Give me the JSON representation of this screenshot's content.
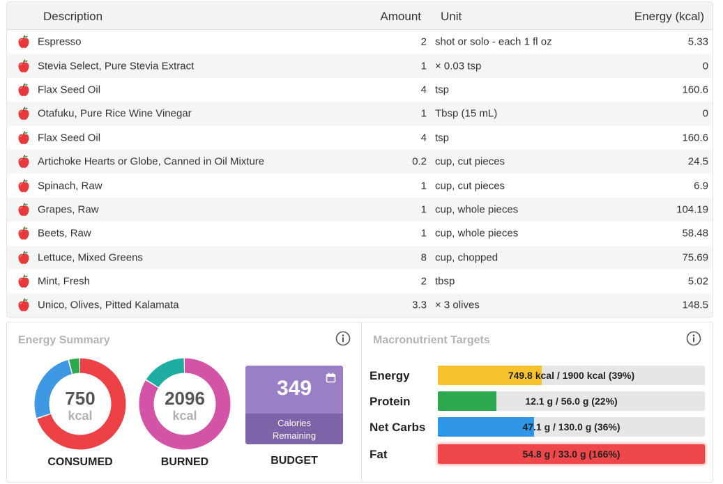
{
  "table": {
    "headers": {
      "description": "Description",
      "amount": "Amount",
      "unit": "Unit",
      "energy": "Energy (kcal)"
    },
    "rows": [
      {
        "description": "Espresso",
        "amount": "2",
        "unit": "shot or solo - each 1 fl oz",
        "energy": "5.33"
      },
      {
        "description": "Stevia Select, Pure Stevia Extract",
        "amount": "1",
        "unit": "× 0.03 tsp",
        "energy": "0"
      },
      {
        "description": "Flax Seed Oil",
        "amount": "4",
        "unit": "tsp",
        "energy": "160.6"
      },
      {
        "description": "Otafuku, Pure Rice Wine Vinegar",
        "amount": "1",
        "unit": "Tbsp (15 mL)",
        "energy": "0"
      },
      {
        "description": "Flax Seed Oil",
        "amount": "4",
        "unit": "tsp",
        "energy": "160.6"
      },
      {
        "description": "Artichoke Hearts or Globe, Canned in Oil Mixture",
        "amount": "0.2",
        "unit": "cup, cut pieces",
        "energy": "24.5"
      },
      {
        "description": "Spinach, Raw",
        "amount": "1",
        "unit": "cup, cut pieces",
        "energy": "6.9"
      },
      {
        "description": "Grapes, Raw",
        "amount": "1",
        "unit": "cup, whole pieces",
        "energy": "104.19"
      },
      {
        "description": "Beets, Raw",
        "amount": "1",
        "unit": "cup, whole pieces",
        "energy": "58.48"
      },
      {
        "description": "Lettuce, Mixed Greens",
        "amount": "8",
        "unit": "cup, chopped",
        "energy": "75.69"
      },
      {
        "description": "Mint, Fresh",
        "amount": "2",
        "unit": "tbsp",
        "energy": "5.02"
      },
      {
        "description": "Unico, Olives, Pitted Kalamata",
        "amount": "3.3",
        "unit": "× 3 olives",
        "energy": "148.5"
      }
    ],
    "row_icon": "apple-icon"
  },
  "energy_summary": {
    "title": "Energy Summary",
    "info_icon": "info-icon",
    "consumed": {
      "value": "750",
      "unit": "kcal",
      "label": "CONSUMED",
      "segments": [
        {
          "fraction": 0.7,
          "color": "#ec4245"
        },
        {
          "fraction": 0.26,
          "color": "#3d97e3"
        },
        {
          "fraction": 0.04,
          "color": "#2ea84f"
        }
      ]
    },
    "burned": {
      "value": "2096",
      "unit": "kcal",
      "label": "BURNED",
      "segments": [
        {
          "fraction": 0.84,
          "color": "#d354a6"
        },
        {
          "fraction": 0.16,
          "color": "#1fada2"
        }
      ]
    },
    "budget": {
      "value": "349",
      "line1": "Calories",
      "line2": "Remaining",
      "label": "BUDGET",
      "icon": "calendar-icon"
    }
  },
  "macro_targets": {
    "title": "Macronutrient Targets",
    "info_icon": "info-icon",
    "items": [
      {
        "name": "Energy",
        "text": "749.8 kcal / 1900 kcal (39%)",
        "fraction": 0.39,
        "color": "#f7c22c",
        "over": false
      },
      {
        "name": "Protein",
        "text": "12.1 g / 56.0 g (22%)",
        "fraction": 0.22,
        "color": "#2ea84f",
        "over": false
      },
      {
        "name": "Net Carbs",
        "text": "47.1 g / 130.0 g (36%)",
        "fraction": 0.36,
        "color": "#2f95e6",
        "over": false
      },
      {
        "name": "Fat",
        "text": "54.8 g / 33.0 g (166%)",
        "fraction": 1.0,
        "color": "#f0474a",
        "over": true
      }
    ]
  }
}
